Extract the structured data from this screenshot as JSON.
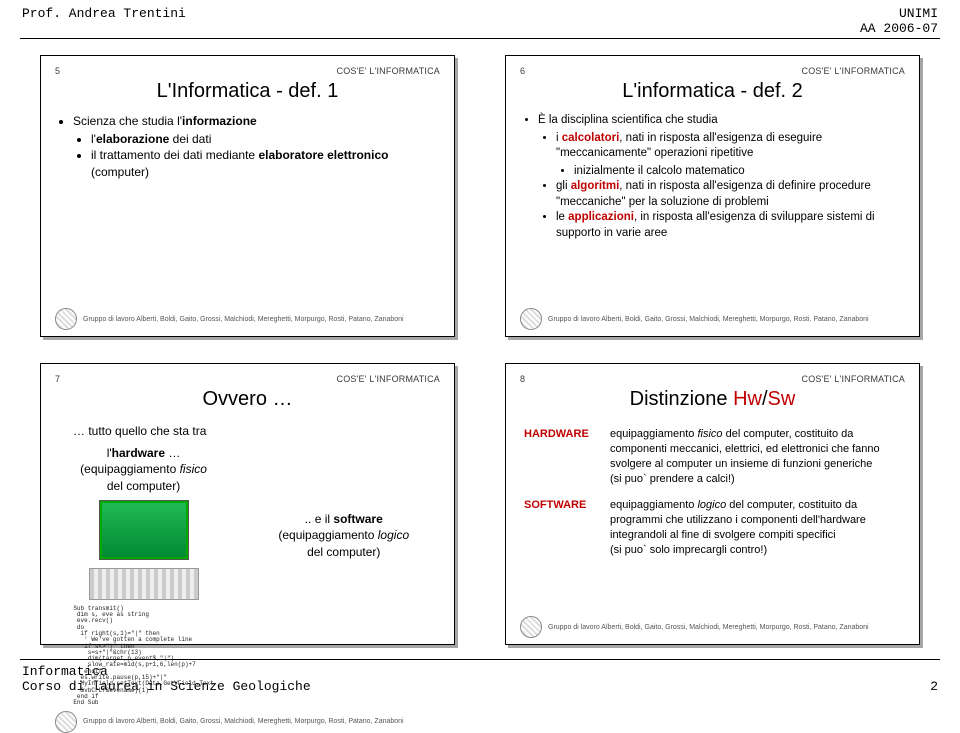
{
  "header": {
    "left": "Prof. Andrea Trentini",
    "right_top": "UNIMI",
    "right_bottom": "AA 2006-07"
  },
  "footer": {
    "line1": "Informatica",
    "line2": "Corso di laurea in Scienze Geologiche",
    "page": "2"
  },
  "credits": "Gruppo di lavoro Alberti, Boldi, Gaito, Grossi, Malchiodi, Mereghetti, Morpurgo, Rosti, Patano, Zanaboni",
  "category": "COS'E' L'INFORMATICA",
  "slides": {
    "s5": {
      "num": "5",
      "title": "L'Informatica - def. 1",
      "b1": "Scienza che studia l'",
      "b1b": "informazione",
      "b2": "l'",
      "b2b": "elaborazione",
      "b2c": " dei dati",
      "b3": "il trattamento dei dati mediante ",
      "b3b": "elaboratore elettronico",
      "b3c": " (computer)"
    },
    "s6": {
      "num": "6",
      "title": "L'informatica - def. 2",
      "b1": "È la disciplina scientifica che studia",
      "b2a": "i ",
      "b2b": "calcolatori",
      "b2c": ", nati in risposta all'esigenza di eseguire \"meccanicamente\" operazioni ripetitive",
      "b2d": "inizialmente il calcolo matematico",
      "b3a": "gli ",
      "b3b": "algoritmi",
      "b3c": ", nati in risposta all'esigenza di definire procedure \"meccaniche\" per la soluzione di problemi",
      "b4a": "le ",
      "b4b": "applicazioni",
      "b4c": ", in risposta all'esigenza di sviluppare sistemi di supporto in varie aree"
    },
    "s7": {
      "num": "7",
      "title": "Ovvero …",
      "intro": "… tutto quello che sta tra",
      "hw1": "l'",
      "hw1b": "hardware",
      "hw1c": " …",
      "hw2": "(equipaggiamento ",
      "hw2i": "fisico",
      "hw2b": " del computer)",
      "sw1": ".. e il ",
      "sw1b": "software",
      "sw2": "(equipaggiamento ",
      "sw2i": "logico",
      "sw2b": " del computer)",
      "code": "Sub transmit()\n dim s, eve as string\n eve.recv()\n do\n  if right(s,1)=\"|\" then\n   ' We've gotten a complete line\n   if s<>\"|\" then\n    s=s+\"|\"&chr(13)\n    dim(target,p,event$,\"|\")\n    slow_rate=mid(s,p+1,6,len(p)+7\n   endif\n  es.write.pause(p,15)+\"|\"\n  MyInfield.setText(Data.GetVField.Text\n  &vbCrLf&evename)(1)\n end if\nEnd Sub"
    },
    "s8": {
      "num": "8",
      "title_a": "Distinzione ",
      "title_b": "Hw",
      "title_c": "/",
      "title_d": "Sw",
      "hw_label": "HARDWARE",
      "hw_text_a": "equipaggiamento ",
      "hw_text_i": "fisico",
      "hw_text_b": " del computer, costituito da componenti meccanici, elettrici, ed elettronici che fanno svolgere al computer un insieme di funzioni generiche",
      "hw_text_c": "(si puo` prendere a calci!)",
      "sw_label": "SOFTWARE",
      "sw_text_a": "equipaggiamento ",
      "sw_text_i": "logico",
      "sw_text_b": " del computer, costituito da programmi che utilizzano i componenti dell'hardware integrandoli al fine di svolgere compiti specifici",
      "sw_text_c": "(si puo` solo imprecargli contro!)"
    }
  },
  "colors": {
    "accent_red": "#c00000"
  }
}
